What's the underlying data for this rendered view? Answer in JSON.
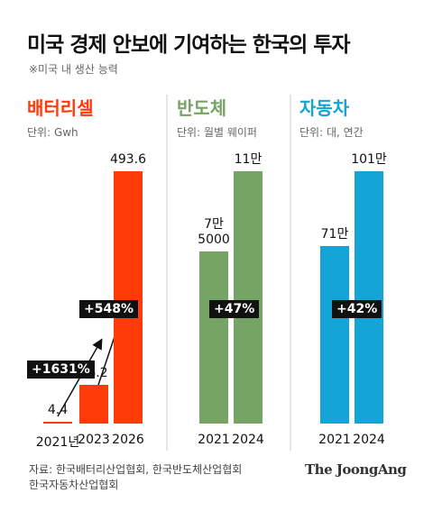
{
  "title": "미국 경제 안보에 기여하는 한국의 투자",
  "subtitle": "※미국 내 생산 능력",
  "source": "자료: 한국배터리산업협회, 한국반도체산업협회\n한국자동차산업협회",
  "logo": "The JoongAng",
  "chart_data": [
    {
      "type": "bar",
      "title": "배터리셀",
      "unit": "단위: Gwh",
      "color": "#ff3b0a",
      "categories": [
        "2021년",
        "2023",
        "2026"
      ],
      "values": [
        4.4,
        76.2,
        493.6
      ],
      "annotations": [
        "+1631%",
        "+548%"
      ]
    },
    {
      "type": "bar",
      "title": "반도체",
      "unit": "단위: 월별 웨이퍼",
      "color": "#76a465",
      "categories": [
        "2021",
        "2024"
      ],
      "values": [
        75000,
        110000
      ],
      "value_labels": [
        "7만\n5000",
        "11만"
      ],
      "annotations": [
        "+47%"
      ]
    },
    {
      "type": "bar",
      "title": "자동차",
      "unit": "단위: 대, 연간",
      "color": "#14a5d6",
      "categories": [
        "2021",
        "2024"
      ],
      "values": [
        710000,
        1010000
      ],
      "value_labels": [
        "71만",
        "101만"
      ],
      "annotations": [
        "+42%"
      ]
    }
  ]
}
